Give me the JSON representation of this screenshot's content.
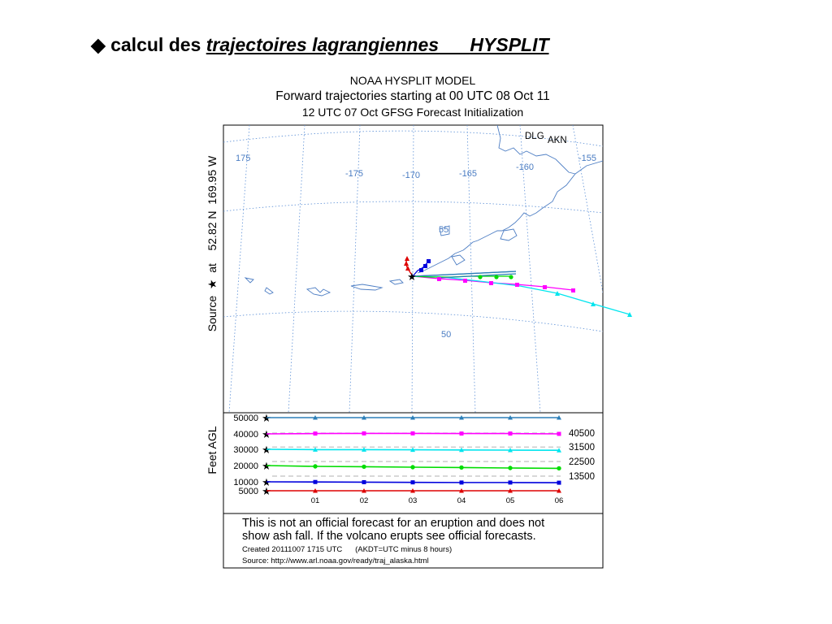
{
  "slide": {
    "bullet": "◆",
    "title_prefix": "calcul des",
    "title_emph": "trajectoires lagrangiennes",
    "title_gap": "      ",
    "title_suffix": "HYSPLIT"
  },
  "figure": {
    "header_line1": "NOAA HYSPLIT MODEL",
    "header_line2": "Forward trajectories starting at 00 UTC 08 Oct 11",
    "header_line3": "12 UTC 07 Oct    GFSG  Forecast Initialization",
    "source_label": "Source  ★  at    52.82 N  169.95 W",
    "map_labels": {
      "lon": [
        "175",
        "-175",
        "-170",
        "-165",
        "-160",
        "-155"
      ],
      "lat": [
        "55",
        "50"
      ],
      "places": [
        "DLG",
        "AKN"
      ]
    },
    "disclaimer_line1": "This is not an official forecast for an eruption and does not",
    "disclaimer_line2": "show ash fall. If the volcano erupts see official forecasts.",
    "created": "Created 20111007 1715 UTC      (AKDT=UTC minus 8 hours)",
    "source_url": "Source: http://www.arl.noaa.gov/ready/traj_alaska.html"
  },
  "chart_data": {
    "type": "line",
    "panel": "height",
    "ylabel": "Feet AGL",
    "y_ticks": [
      50000,
      40000,
      30000,
      20000,
      10000,
      5000
    ],
    "x": [
      "00",
      "01",
      "02",
      "03",
      "04",
      "05",
      "06"
    ],
    "x_tick_labels": [
      "01",
      "02",
      "03",
      "04",
      "05",
      "06"
    ],
    "series": [
      {
        "color": "#2c7fb8",
        "marker": "triangle",
        "values": [
          50000,
          50000,
          50000,
          50000,
          50000,
          50000,
          50000
        ]
      },
      {
        "color": "#ff00ff",
        "marker": "square",
        "values": [
          40000,
          40200,
          40300,
          40300,
          40200,
          40200,
          40000
        ]
      },
      {
        "color": "#00e5ee",
        "marker": "triangle",
        "values": [
          30000,
          29800,
          29800,
          29700,
          29600,
          29500,
          29400
        ]
      },
      {
        "color": "#00dd00",
        "marker": "circle",
        "values": [
          20000,
          19500,
          19300,
          19000,
          18800,
          18500,
          18300
        ]
      },
      {
        "color": "#0000dd",
        "marker": "square",
        "values": [
          10000,
          9900,
          9800,
          9700,
          9600,
          9600,
          9500
        ]
      },
      {
        "color": "#dd0000",
        "marker": "triangle",
        "values": [
          5000,
          5000,
          5000,
          5000,
          5000,
          5000,
          5000
        ]
      }
    ],
    "dashed_reference_levels": [
      40500,
      31500,
      22500,
      13500
    ],
    "reference_labels": [
      "40500",
      "31500",
      "22500",
      "13500"
    ]
  }
}
